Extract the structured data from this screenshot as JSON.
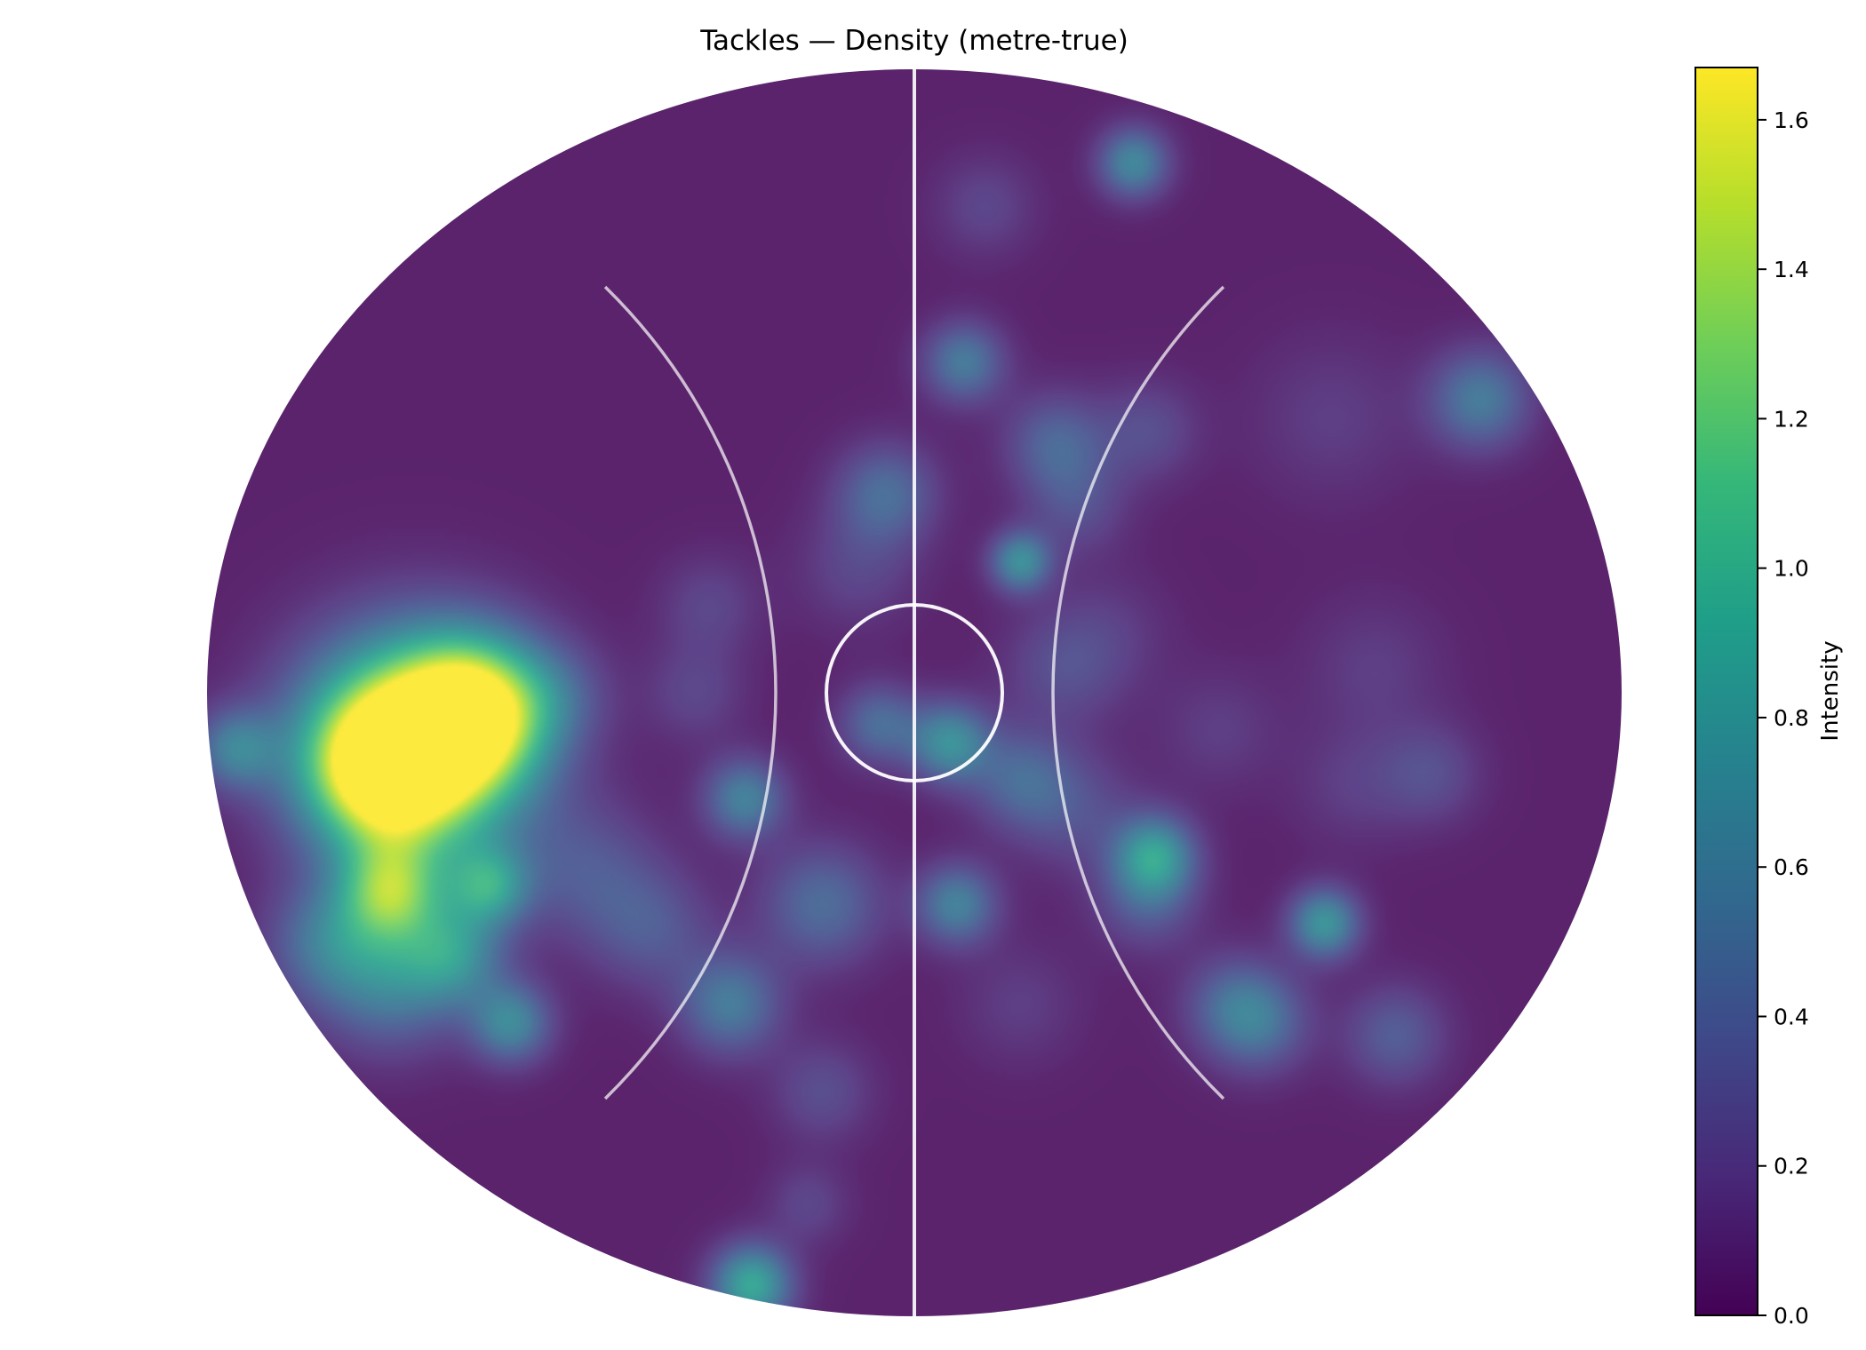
{
  "chart_data": {
    "type": "heatmap",
    "title": "Tackles — Density (metre-true)",
    "colorbar": {
      "label": "Intensity",
      "range": [
        0.0,
        1.67
      ],
      "ticks": [
        "0.0",
        "0.2",
        "0.4",
        "0.6",
        "0.8",
        "1.0",
        "1.2",
        "1.4",
        "1.6"
      ],
      "colormap": [
        "#440154",
        "#482878",
        "#3e4989",
        "#31688e",
        "#26828e",
        "#1f9e89",
        "#35b779",
        "#6ece58",
        "#b5de2b",
        "#fde725"
      ]
    },
    "field_shape": "oval",
    "grid": false,
    "background_alpha": 0.88,
    "line_color": "#ffffff",
    "hotspots": [
      {
        "x": -0.71,
        "y": -0.09,
        "value": 1.67,
        "spread": 0.11
      },
      {
        "x": -0.62,
        "y": -0.03,
        "value": 1.3,
        "spread": 0.07
      },
      {
        "x": -0.75,
        "y": -0.12,
        "value": 1.1,
        "spread": 0.07
      },
      {
        "x": -0.74,
        "y": -0.32,
        "value": 0.95,
        "spread": 0.05
      },
      {
        "x": -0.6,
        "y": -0.31,
        "value": 0.7,
        "spread": 0.04
      },
      {
        "x": -0.65,
        "y": -0.42,
        "value": 0.6,
        "spread": 0.05
      },
      {
        "x": -0.74,
        "y": -0.46,
        "value": 0.55,
        "spread": 0.07
      },
      {
        "x": -0.57,
        "y": -0.53,
        "value": 0.65,
        "spread": 0.04
      },
      {
        "x": -0.83,
        "y": -0.4,
        "value": 0.45,
        "spread": 0.06
      },
      {
        "x": -0.96,
        "y": -0.09,
        "value": 0.55,
        "spread": 0.04
      },
      {
        "x": -0.46,
        "y": -0.29,
        "value": 0.3,
        "spread": 0.07
      },
      {
        "x": -0.37,
        "y": -0.38,
        "value": 0.3,
        "spread": 0.06
      },
      {
        "x": -0.26,
        "y": -0.5,
        "value": 0.55,
        "spread": 0.05
      },
      {
        "x": -0.24,
        "y": -0.17,
        "value": 0.6,
        "spread": 0.04
      },
      {
        "x": -0.13,
        "y": -0.34,
        "value": 0.45,
        "spread": 0.06
      },
      {
        "x": -0.05,
        "y": -0.05,
        "value": 0.45,
        "spread": 0.04
      },
      {
        "x": -0.04,
        "y": 0.32,
        "value": 0.45,
        "spread": 0.05
      },
      {
        "x": -0.08,
        "y": 0.2,
        "value": 0.2,
        "spread": 0.06
      },
      {
        "x": -0.29,
        "y": 0.14,
        "value": 0.2,
        "spread": 0.05
      },
      {
        "x": -0.31,
        "y": 0.0,
        "value": 0.2,
        "spread": 0.05
      },
      {
        "x": -0.5,
        "y": 0.0,
        "value": 0.2,
        "spread": 0.05
      },
      {
        "x": -0.13,
        "y": -0.64,
        "value": 0.25,
        "spread": 0.05
      },
      {
        "x": -0.15,
        "y": -0.82,
        "value": 0.2,
        "spread": 0.04
      },
      {
        "x": -0.23,
        "y": -0.95,
        "value": 0.9,
        "spread": 0.04
      },
      {
        "x": 0.05,
        "y": -0.08,
        "value": 0.7,
        "spread": 0.04
      },
      {
        "x": 0.06,
        "y": -0.34,
        "value": 0.6,
        "spread": 0.04
      },
      {
        "x": 0.15,
        "y": -0.14,
        "value": 0.4,
        "spread": 0.05
      },
      {
        "x": 0.23,
        "y": -0.19,
        "value": 0.25,
        "spread": 0.06
      },
      {
        "x": 0.15,
        "y": 0.21,
        "value": 0.7,
        "spread": 0.03
      },
      {
        "x": 0.21,
        "y": 0.04,
        "value": 0.25,
        "spread": 0.06
      },
      {
        "x": 0.2,
        "y": 0.4,
        "value": 0.4,
        "spread": 0.05
      },
      {
        "x": 0.23,
        "y": 0.3,
        "value": 0.25,
        "spread": 0.05
      },
      {
        "x": 0.07,
        "y": 0.53,
        "value": 0.55,
        "spread": 0.04
      },
      {
        "x": 0.1,
        "y": 0.78,
        "value": 0.2,
        "spread": 0.05
      },
      {
        "x": 0.33,
        "y": 0.42,
        "value": 0.25,
        "spread": 0.05
      },
      {
        "x": 0.31,
        "y": 0.85,
        "value": 0.65,
        "spread": 0.035
      },
      {
        "x": 0.34,
        "y": -0.26,
        "value": 0.75,
        "spread": 0.04
      },
      {
        "x": 0.33,
        "y": -0.33,
        "value": 0.35,
        "spread": 0.05
      },
      {
        "x": 0.45,
        "y": -0.5,
        "value": 0.35,
        "spread": 0.05
      },
      {
        "x": 0.49,
        "y": -0.53,
        "value": 0.4,
        "spread": 0.05
      },
      {
        "x": 0.58,
        "y": -0.37,
        "value": 0.75,
        "spread": 0.035
      },
      {
        "x": 0.68,
        "y": -0.55,
        "value": 0.35,
        "spread": 0.05
      },
      {
        "x": 0.8,
        "y": 0.47,
        "value": 0.55,
        "spread": 0.05
      },
      {
        "x": 0.59,
        "y": 0.44,
        "value": 0.15,
        "spread": 0.08
      },
      {
        "x": 0.65,
        "y": 0.04,
        "value": 0.15,
        "spread": 0.07
      },
      {
        "x": 0.73,
        "y": -0.13,
        "value": 0.25,
        "spread": 0.05
      },
      {
        "x": 0.62,
        "y": -0.15,
        "value": 0.15,
        "spread": 0.06
      },
      {
        "x": 0.43,
        "y": -0.06,
        "value": 0.15,
        "spread": 0.06
      },
      {
        "x": 0.15,
        "y": -0.5,
        "value": 0.15,
        "spread": 0.06
      },
      {
        "x": 0.28,
        "y": 0.1,
        "value": 0.12,
        "spread": 0.06
      }
    ]
  }
}
